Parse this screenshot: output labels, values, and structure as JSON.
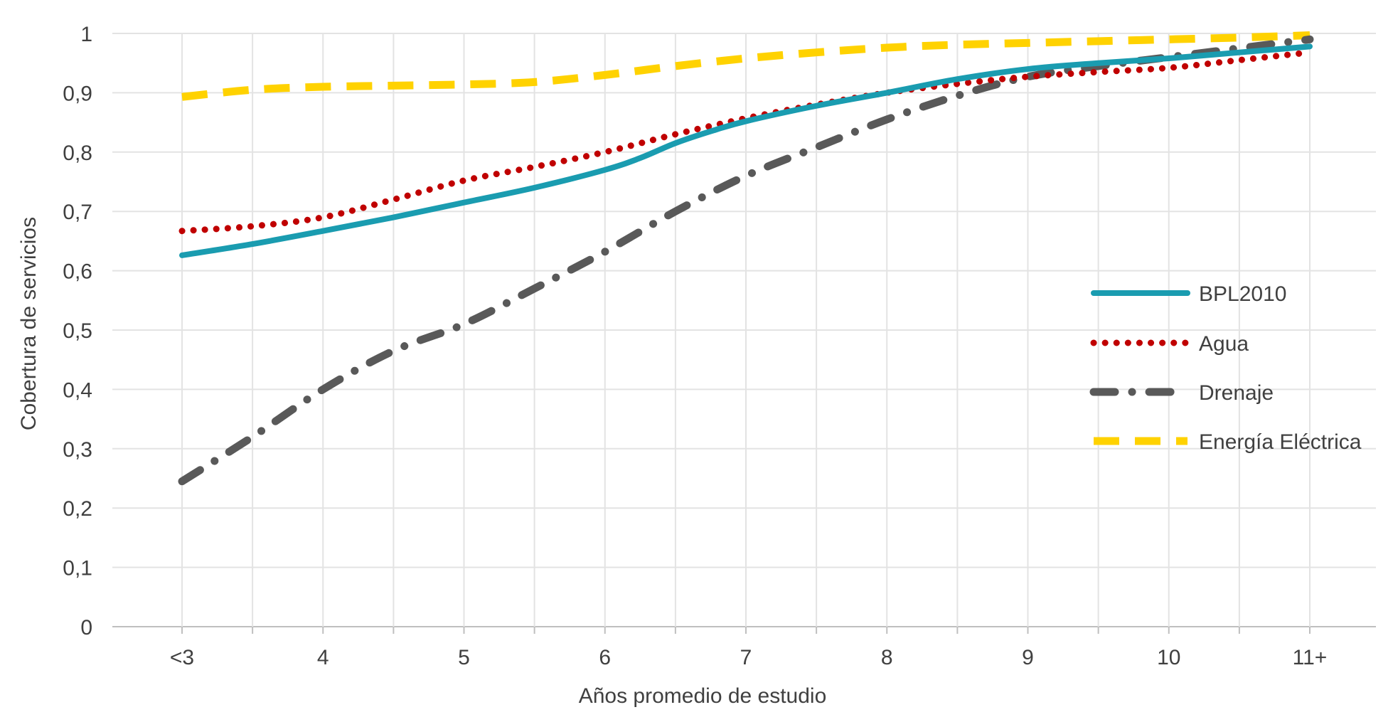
{
  "chart_data": {
    "type": "line",
    "title": "",
    "xlabel": "Años promedio de estudio",
    "ylabel": "Cobertura de servicios",
    "categories": [
      "<3",
      "4",
      "5",
      "6",
      "7",
      "8",
      "9",
      "10",
      "11+"
    ],
    "ylim": [
      0,
      1
    ],
    "yticks": [
      "0",
      "0,1",
      "0,2",
      "0,3",
      "0,4",
      "0,5",
      "0,6",
      "0,7",
      "0,8",
      "0,9",
      "1"
    ],
    "grid": true,
    "legend_position": "right",
    "series": [
      {
        "name": "BPL2010",
        "color": "#1a9cb0",
        "style": "solid",
        "x": [
          0,
          0.5,
          1,
          1.5,
          2,
          2.5,
          3,
          3.25,
          3.5,
          3.75,
          4,
          4.5,
          5,
          5.5,
          6,
          6.5,
          7,
          7.5,
          8
        ],
        "values": [
          0.626,
          0.645,
          0.667,
          0.69,
          0.715,
          0.74,
          0.77,
          0.79,
          0.815,
          0.835,
          0.852,
          0.878,
          0.9,
          0.923,
          0.94,
          0.95,
          0.958,
          0.968,
          0.978
        ]
      },
      {
        "name": "Agua",
        "color": "#c00000",
        "style": "dotted",
        "x": [
          0,
          0.5,
          1,
          1.5,
          2,
          2.5,
          3,
          3.5,
          4,
          4.5,
          5,
          5.5,
          6,
          6.5,
          7,
          7.5,
          8
        ],
        "values": [
          0.667,
          0.675,
          0.69,
          0.72,
          0.752,
          0.775,
          0.8,
          0.83,
          0.857,
          0.88,
          0.9,
          0.915,
          0.927,
          0.935,
          0.942,
          0.955,
          0.968
        ]
      },
      {
        "name": "Drenaje",
        "color": "#595959",
        "style": "dashdot",
        "x": [
          0,
          0.5,
          1,
          1.5,
          2,
          2.5,
          3,
          3.5,
          4,
          4.5,
          5,
          5.5,
          6,
          6.5,
          7,
          7.5,
          8
        ],
        "values": [
          0.245,
          0.32,
          0.4,
          0.465,
          0.51,
          0.57,
          0.632,
          0.7,
          0.76,
          0.808,
          0.855,
          0.895,
          0.927,
          0.945,
          0.96,
          0.975,
          0.99
        ]
      },
      {
        "name": "Energía Eléctrica",
        "color": "#ffd200",
        "style": "dashed",
        "x": [
          0,
          0.5,
          1,
          1.5,
          2,
          2.5,
          3,
          3.5,
          4,
          4.5,
          5,
          5.5,
          6,
          6.5,
          7,
          7.5,
          8
        ],
        "values": [
          0.893,
          0.905,
          0.91,
          0.912,
          0.914,
          0.918,
          0.93,
          0.945,
          0.958,
          0.968,
          0.976,
          0.981,
          0.984,
          0.987,
          0.99,
          0.993,
          0.997
        ]
      }
    ]
  }
}
